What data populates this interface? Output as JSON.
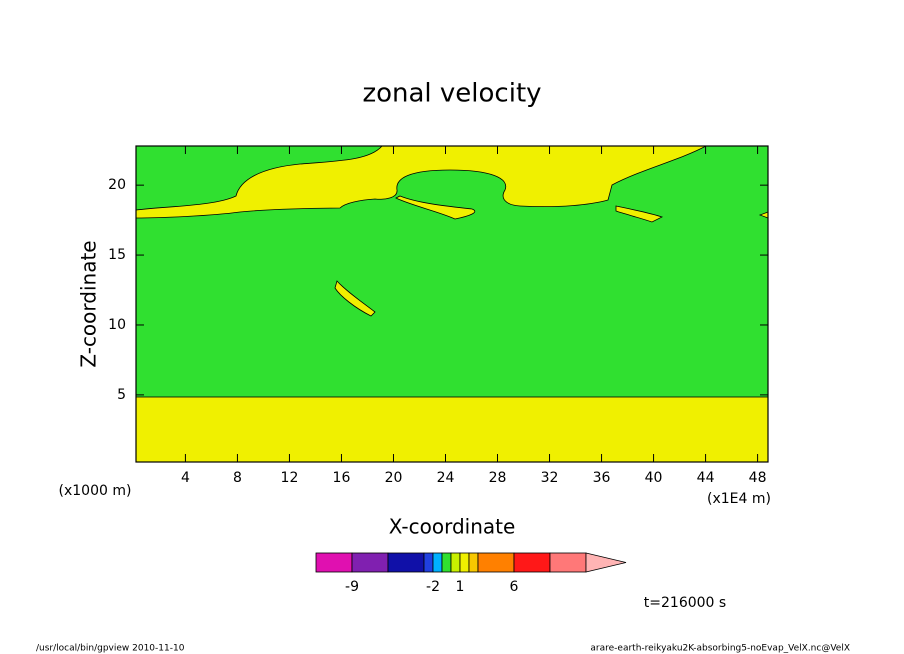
{
  "chart_data": {
    "type": "contour",
    "title": "zonal velocity",
    "x_label": "X-coordinate",
    "y_label": "Z-coordinate",
    "x_unit_note": "(x1000 m)",
    "x_scale_note": "(x1E4 m)",
    "time_note": "t=216000 s",
    "footer_left": "/usr/local/bin/gpview  2010-11-10",
    "footer_right": "arare-earth-reikyaku2K-absorbing5-noEvap_VelX.nc@VelX",
    "xlim": [
      0.2,
      48.8
    ],
    "xticks": [
      4,
      8,
      12,
      16,
      20,
      24,
      28,
      32,
      36,
      40,
      44,
      48
    ],
    "ylim": [
      0.2,
      22.8
    ],
    "yticks": [
      5,
      10,
      15,
      20
    ],
    "colorbar": {
      "levels": [
        -12,
        -9,
        -6,
        -3,
        -2,
        -1,
        0,
        1,
        2,
        3,
        6,
        9,
        12
      ],
      "colors": [
        "#e010b0",
        "#8020b0",
        "#1010a8",
        "#2040e0",
        "#00b0ff",
        "#30e030",
        "#c8f000",
        "#f0f000",
        "#f8c800",
        "#ff8000",
        "#ff1818",
        "#ff7878"
      ],
      "extend_color": "#ffb4b4",
      "ticks": [
        -9,
        -2,
        1,
        6
      ]
    }
  }
}
